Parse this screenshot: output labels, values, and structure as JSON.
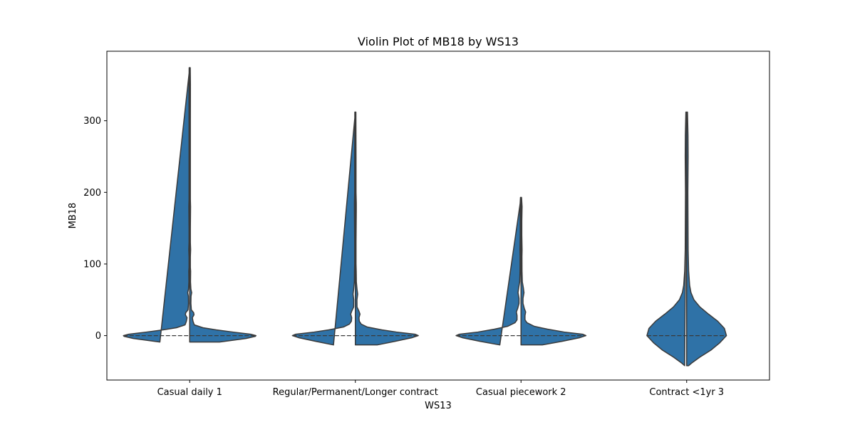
{
  "chart_data": {
    "type": "violin",
    "title": "Violin Plot of MB18 by WS13",
    "xlabel": "WS13",
    "ylabel": "MB18",
    "categories": [
      "Casual daily 1",
      "Regular/Permanent/Longer contract",
      "Casual piecework 2",
      "Contract <1yr 3"
    ],
    "ylim": [
      -62,
      397
    ],
    "yticks": [
      0,
      100,
      200,
      300
    ],
    "grid": false,
    "inner": "quartile",
    "color": "#2f72a7",
    "edge_color": "#3a3a3a",
    "violins": [
      {
        "category": "Casual daily 1",
        "min": -9,
        "max": 374,
        "median": 0,
        "profile": [
          [
            -9,
            0.45
          ],
          [
            -4,
            0.85
          ],
          [
            -1,
            0.99
          ],
          [
            0,
            1.0
          ],
          [
            2,
            0.92
          ],
          [
            5,
            0.65
          ],
          [
            8,
            0.4
          ],
          [
            11,
            0.2
          ],
          [
            15,
            0.07
          ],
          [
            20,
            0.05
          ],
          [
            25,
            0.04
          ],
          [
            29,
            0.065
          ],
          [
            32,
            0.06
          ],
          [
            36,
            0.025
          ],
          [
            45,
            0.018
          ],
          [
            55,
            0.02
          ],
          [
            60,
            0.03
          ],
          [
            65,
            0.018
          ],
          [
            75,
            0.012
          ],
          [
            90,
            0.014
          ],
          [
            95,
            0.01
          ],
          [
            110,
            0.01
          ],
          [
            120,
            0.014
          ],
          [
            130,
            0.01
          ],
          [
            150,
            0.01
          ],
          [
            180,
            0.013
          ],
          [
            190,
            0.01
          ],
          [
            250,
            0.01
          ],
          [
            300,
            0.01
          ],
          [
            350,
            0.011
          ],
          [
            374,
            0.008
          ]
        ]
      },
      {
        "category": "Regular/Permanent/Longer contract",
        "min": -13,
        "max": 312,
        "median": 0,
        "profile": [
          [
            -13,
            0.33
          ],
          [
            -8,
            0.6
          ],
          [
            -3,
            0.85
          ],
          [
            0,
            0.95
          ],
          [
            2,
            0.9
          ],
          [
            5,
            0.62
          ],
          [
            8,
            0.4
          ],
          [
            12,
            0.18
          ],
          [
            16,
            0.09
          ],
          [
            20,
            0.06
          ],
          [
            25,
            0.055
          ],
          [
            30,
            0.07
          ],
          [
            34,
            0.055
          ],
          [
            40,
            0.025
          ],
          [
            50,
            0.024
          ],
          [
            58,
            0.035
          ],
          [
            65,
            0.025
          ],
          [
            75,
            0.015
          ],
          [
            90,
            0.013
          ],
          [
            100,
            0.01
          ],
          [
            130,
            0.01
          ],
          [
            175,
            0.014
          ],
          [
            185,
            0.014
          ],
          [
            200,
            0.01
          ],
          [
            250,
            0.01
          ],
          [
            312,
            0.008
          ]
        ]
      },
      {
        "category": "Casual piecework 2",
        "min": -13,
        "max": 193,
        "median": 0,
        "profile": [
          [
            -13,
            0.32
          ],
          [
            -8,
            0.62
          ],
          [
            -3,
            0.88
          ],
          [
            0,
            0.98
          ],
          [
            2,
            0.93
          ],
          [
            5,
            0.65
          ],
          [
            9,
            0.4
          ],
          [
            13,
            0.2
          ],
          [
            18,
            0.09
          ],
          [
            22,
            0.06
          ],
          [
            28,
            0.06
          ],
          [
            33,
            0.07
          ],
          [
            38,
            0.05
          ],
          [
            45,
            0.03
          ],
          [
            52,
            0.03
          ],
          [
            60,
            0.045
          ],
          [
            67,
            0.035
          ],
          [
            75,
            0.02
          ],
          [
            90,
            0.015
          ],
          [
            110,
            0.014
          ],
          [
            120,
            0.016
          ],
          [
            140,
            0.012
          ],
          [
            160,
            0.012
          ],
          [
            180,
            0.016
          ],
          [
            193,
            0.008
          ]
        ]
      },
      {
        "category": "Contract <1yr 3",
        "min": -42,
        "max": 312,
        "median": 0,
        "profile": [
          [
            -42,
            0.03
          ],
          [
            -38,
            0.08
          ],
          [
            -30,
            0.2
          ],
          [
            -20,
            0.37
          ],
          [
            -10,
            0.5
          ],
          [
            0,
            0.6
          ],
          [
            10,
            0.57
          ],
          [
            20,
            0.47
          ],
          [
            30,
            0.33
          ],
          [
            40,
            0.2
          ],
          [
            50,
            0.11
          ],
          [
            60,
            0.065
          ],
          [
            70,
            0.045
          ],
          [
            90,
            0.03
          ],
          [
            120,
            0.022
          ],
          [
            160,
            0.02
          ],
          [
            200,
            0.018
          ],
          [
            250,
            0.022
          ],
          [
            280,
            0.02
          ],
          [
            312,
            0.012
          ]
        ]
      }
    ]
  }
}
